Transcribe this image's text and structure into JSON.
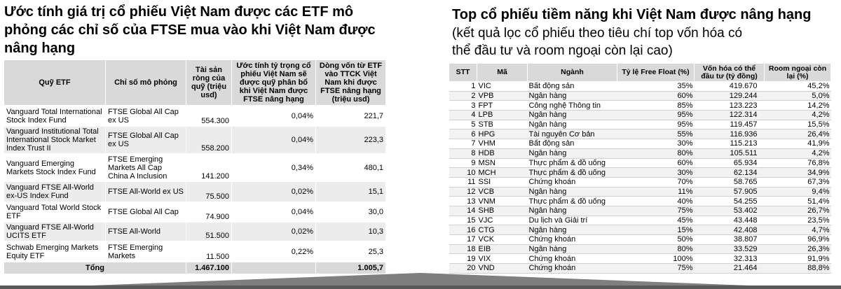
{
  "left": {
    "title": "Ước tính giá trị cổ phiếu Việt Nam được các ETF mô phỏng các chỉ số của FTSE mua vào khi Việt Nam được nâng hạng",
    "table": {
      "headers": [
        "Quỹ ETF",
        "Chỉ số mô phỏng",
        "Tài sản ròng của quỹ (triệu usd)",
        "Ước tính tỷ trọng cổ phiếu Việt Nam sẽ được quỹ phân bổ khi Việt Nam được FTSE nâng hạng",
        "Dòng vốn từ ETF vào TTCK Việt Nam khi được FTSE nâng hạng (triệu usd)"
      ],
      "rows": [
        [
          "Vanguard Total International Stock Index Fund",
          "FTSE Global All Cap ex US",
          "554.300",
          "0,04%",
          "221,7"
        ],
        [
          "Vanguard Institutional Total International Stock Market Index Trust II",
          "FTSE Global All Cap ex US",
          "558.200",
          "0,04%",
          "223,3"
        ],
        [
          "Vanguard Emerging Markets Stock Index Fund",
          "FTSE Emerging Markets All Cap China A Inclusion",
          "141.200",
          "0,34%",
          "480,1"
        ],
        [
          "Vanguard FTSE All-World ex-US Index Fund",
          "FTSE All-World ex US",
          "75.500",
          "0,02%",
          "15,1"
        ],
        [
          "Vanguard Total World Stock ETF",
          "FTSE Global All Cap",
          "74.900",
          "0,04%",
          "30,0"
        ],
        [
          "Vanguard FTSE All-World UCITS ETF",
          "FTSE All-World",
          "51.500",
          "0,02%",
          "10,3"
        ],
        [
          "Schwab Emerging Markets Equity ETF",
          "FTSE Emerging Markets",
          "11.500",
          "0,22%",
          "25,3"
        ]
      ],
      "total": {
        "label": "Tổng",
        "net_assets": "1.467.100",
        "inflow": "1.005,7"
      }
    }
  },
  "right": {
    "title": "Top cổ phiếu tiềm năng khi Việt Nam được nâng hạng",
    "subtitle": "(kết quả lọc cổ phiếu theo tiêu chí top vốn hóa có thể đầu tư và room ngoại còn lại cao)",
    "table": {
      "headers": [
        "STT",
        "Mã",
        "Ngành",
        "Tỷ lệ Free Float (%)",
        "Vốn hóa có thể đầu tư (tỷ đồng)",
        "Room ngoại còn lại (%)"
      ],
      "rows": [
        [
          "1",
          "VIC",
          "Bất động sản",
          "35%",
          "419.670",
          "45,2%"
        ],
        [
          "2",
          "VPB",
          "Ngân hàng",
          "60%",
          "129.244",
          "5,0%"
        ],
        [
          "3",
          "FPT",
          "Công nghệ Thông tin",
          "85%",
          "123.223",
          "14,2%"
        ],
        [
          "4",
          "LPB",
          "Ngân hàng",
          "95%",
          "122.314",
          "4,2%"
        ],
        [
          "5",
          "STB",
          "Ngân hàng",
          "95%",
          "119.457",
          "15,5%"
        ],
        [
          "6",
          "HPG",
          "Tài nguyên Cơ bản",
          "55%",
          "116.936",
          "26,4%"
        ],
        [
          "7",
          "VHM",
          "Bất động sản",
          "30%",
          "115.213",
          "41,9%"
        ],
        [
          "8",
          "HDB",
          "Ngân hàng",
          "80%",
          "105.511",
          "4,2%"
        ],
        [
          "9",
          "MSN",
          "Thực phẩm & đồ uống",
          "60%",
          "65.934",
          "76,8%"
        ],
        [
          "10",
          "MCH",
          "Thực phẩm & đồ uống",
          "30%",
          "62.134",
          "34,9%"
        ],
        [
          "11",
          "SSI",
          "Chứng khoán",
          "70%",
          "58.765",
          "67,3%"
        ],
        [
          "12",
          "VCB",
          "Ngân hàng",
          "11%",
          "57.905",
          "9,4%"
        ],
        [
          "13",
          "VNM",
          "Thực phẩm & đồ uống",
          "40%",
          "54.255",
          "51,4%"
        ],
        [
          "14",
          "SHB",
          "Ngân hàng",
          "75%",
          "53.402",
          "26,7%"
        ],
        [
          "15",
          "VJC",
          "Du lịch và Giải trí",
          "45%",
          "43.448",
          "23,5%"
        ],
        [
          "16",
          "CTG",
          "Ngân hàng",
          "15%",
          "42.408",
          "4,7%"
        ],
        [
          "17",
          "VCK",
          "Chứng khoán",
          "50%",
          "38.807",
          "96,9%"
        ],
        [
          "18",
          "EIB",
          "Ngân hàng",
          "80%",
          "33.529",
          "26,3%"
        ],
        [
          "19",
          "VIX",
          "Chứng khoán",
          "100%",
          "32.313",
          "91,9%"
        ],
        [
          "20",
          "VND",
          "Chứng khoán",
          "75%",
          "21.464",
          "88,8%"
        ]
      ]
    }
  }
}
